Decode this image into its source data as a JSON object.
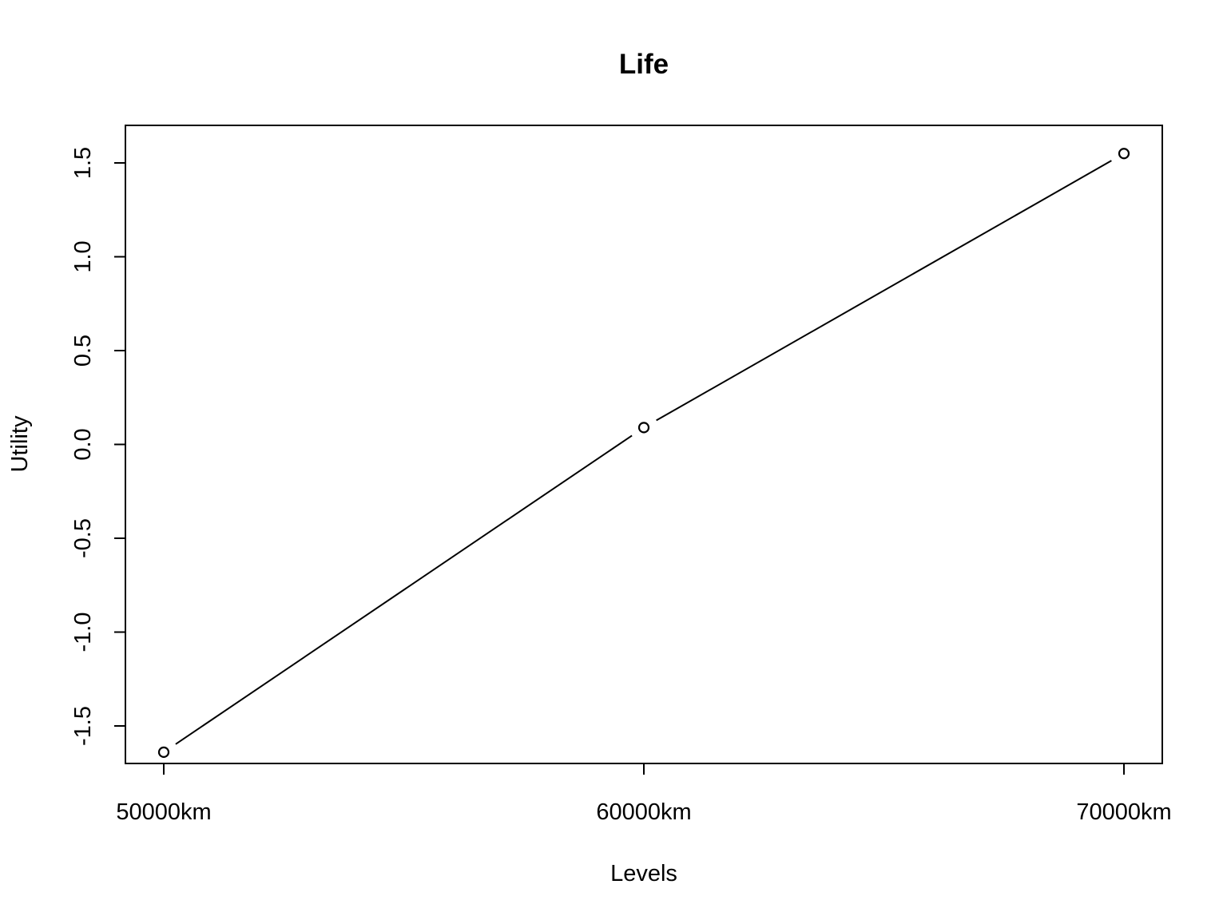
{
  "chart_data": {
    "type": "line",
    "title": "Life",
    "xlabel": "Levels",
    "ylabel": "Utility",
    "categories": [
      "50000km",
      "60000km",
      "70000km"
    ],
    "values": [
      -1.64,
      0.09,
      1.55
    ],
    "ylim": [
      -1.7,
      1.7
    ],
    "yticks": [
      "-1.5",
      "-1.0",
      "-0.5",
      "0.0",
      "0.5",
      "1.0",
      "1.5"
    ],
    "marker": "open-circle",
    "grid": false,
    "legend": "none",
    "colors": {
      "line": "#000000",
      "background": "#ffffff"
    }
  }
}
